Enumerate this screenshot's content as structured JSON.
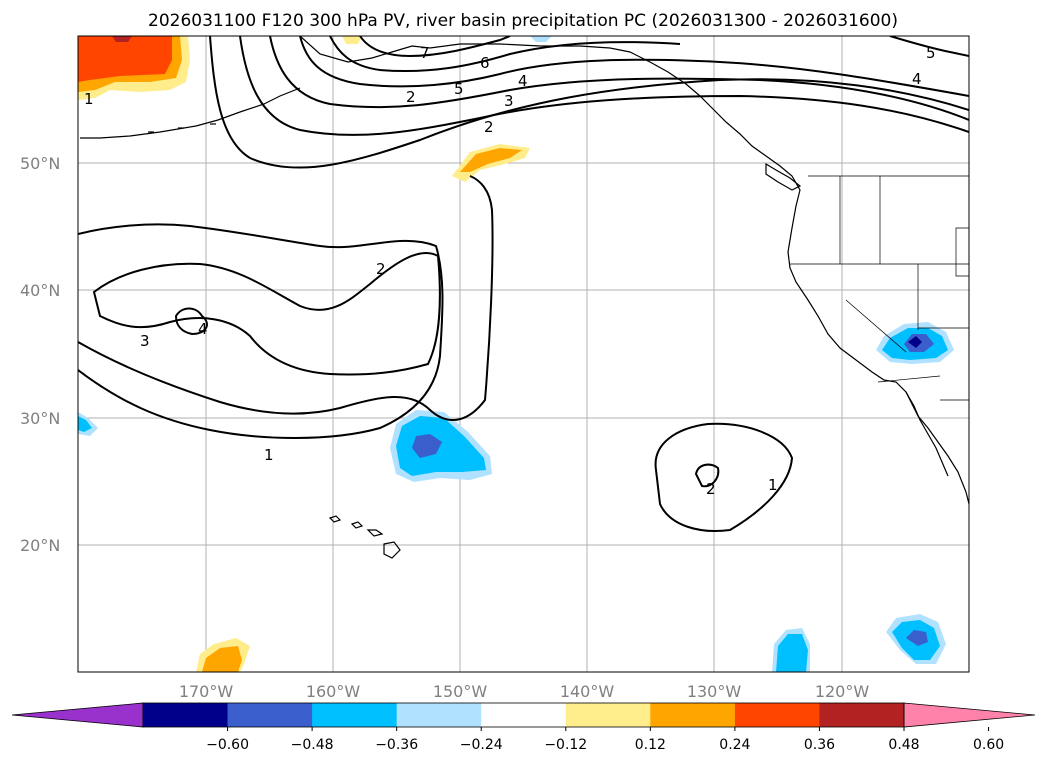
{
  "title": "2026031100 F120 300 hPa PV, river basin precipitation PC (2026031300 - 2026031600)",
  "lat_labels": [
    "50°N",
    "40°N",
    "30°N",
    "20°N"
  ],
  "lon_labels": [
    "170°W",
    "160°W",
    "150°W",
    "140°W",
    "130°W",
    "120°W"
  ],
  "colorbar": {
    "ticks": [
      "−0.60",
      "−0.48",
      "−0.36",
      "−0.24",
      "−0.12",
      "0.12",
      "0.24",
      "0.36",
      "0.48",
      "0.60"
    ],
    "colors": [
      "#9932cc",
      "#00008b",
      "#3a5fcd",
      "#00bfff",
      "#b0e2ff",
      "#ffffff",
      "#ffec8b",
      "#ffa500",
      "#ff4500",
      "#b22222",
      "#ff82ab"
    ]
  },
  "contour_labels": [
    "7",
    "6",
    "5",
    "4",
    "3",
    "2",
    "5",
    "4",
    "2",
    "2",
    "3",
    "4",
    "1",
    "1",
    "2",
    "1"
  ],
  "map_data": {
    "extent_lon": [
      -180,
      -110
    ],
    "extent_lat": [
      10,
      60
    ],
    "field": "300 hPa PV (PVU) contours with precipitation PC shading",
    "shading_regions": [
      {
        "center_lon": -152,
        "center_lat": 28,
        "sign": "negative",
        "peak": -0.48
      },
      {
        "center_lon": -115,
        "center_lat": 35,
        "sign": "negative",
        "peak": -0.48
      },
      {
        "center_lon": -114,
        "center_lat": 13,
        "sign": "negative",
        "peak": -0.48
      },
      {
        "center_lon": -123,
        "center_lat": 12,
        "sign": "negative",
        "peak": -0.36
      },
      {
        "center_lon": -147,
        "center_lat": 50,
        "sign": "positive",
        "peak": 0.36
      },
      {
        "center_lon": -176,
        "center_lat": 58,
        "sign": "positive",
        "peak": 0.48
      },
      {
        "center_lon": -167,
        "center_lat": 11,
        "sign": "positive",
        "peak": 0.36
      }
    ]
  }
}
